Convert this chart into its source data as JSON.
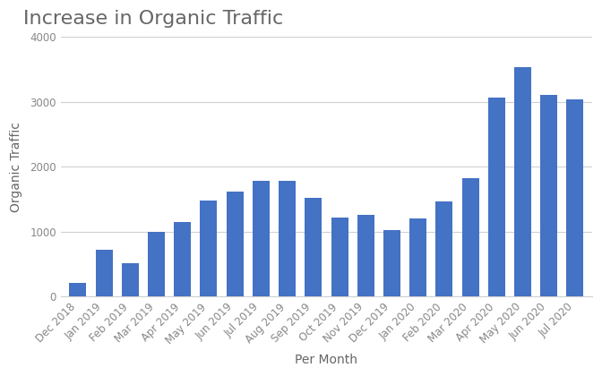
{
  "title": "Increase in Organic Traffic",
  "xlabel": "Per Month",
  "ylabel": "Organic Traffic",
  "categories": [
    "Dec 2018",
    "Jan 2019",
    "Feb 2019",
    "Mar 2019",
    "Apr 2019",
    "May 2019",
    "Jun 2019",
    "Jul 2019",
    "Aug 2019",
    "Sep 2019",
    "Oct 2019",
    "Nov 2019",
    "Dec 2019",
    "Jan 2020",
    "Feb 2020",
    "Mar 2020",
    "Apr 2020",
    "May 2020",
    "Jun 2020",
    "Jul 2020"
  ],
  "values": [
    220,
    720,
    520,
    1000,
    1150,
    1480,
    1620,
    1780,
    1780,
    1520,
    1220,
    1260,
    1030,
    1210,
    1470,
    1830,
    3060,
    3530,
    3110,
    3040
  ],
  "bar_color": "#4472C4",
  "ylim": [
    0,
    4000
  ],
  "yticks": [
    0,
    1000,
    2000,
    3000,
    4000
  ],
  "background_color": "#ffffff",
  "plot_bg_color": "#ffffff",
  "border_color": "#d0d0d0",
  "grid_color": "#d0d0d0",
  "title_color": "#666666",
  "label_color": "#666666",
  "tick_color": "#888888",
  "title_fontsize": 16,
  "axis_label_fontsize": 10,
  "tick_fontsize": 8.5
}
